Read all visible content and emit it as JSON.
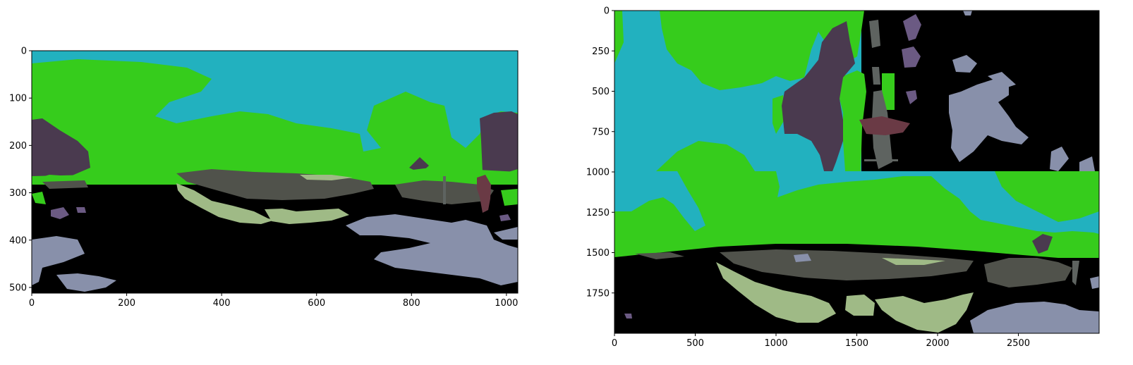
{
  "figure": {
    "panels": [
      {
        "name": "left-segmentation",
        "x_ticks": [
          "0",
          "200",
          "400",
          "600",
          "800",
          "1000"
        ],
        "x_tick_values": [
          0,
          200,
          400,
          600,
          800,
          1000
        ],
        "y_ticks": [
          "0",
          "100",
          "200",
          "300",
          "400",
          "500"
        ],
        "y_tick_values": [
          0,
          100,
          200,
          300,
          400,
          500
        ],
        "x_range": [
          0,
          1024
        ],
        "y_range": [
          0,
          512
        ]
      },
      {
        "name": "right-segmentation",
        "x_ticks": [
          "0",
          "500",
          "1000",
          "1500",
          "2000",
          "2500"
        ],
        "x_tick_values": [
          0,
          500,
          1000,
          1500,
          2000,
          2500
        ],
        "y_ticks": [
          "0",
          "250",
          "500",
          "750",
          "1000",
          "1250",
          "1500",
          "1750"
        ],
        "y_tick_values": [
          0,
          250,
          500,
          750,
          1000,
          1250,
          1500,
          1750
        ],
        "x_range": [
          0,
          3000
        ],
        "y_range": [
          0,
          2000
        ]
      }
    ],
    "colors": {
      "sky": "#22b1bf",
      "vegetation": "#36cc1c",
      "ground": "#000000",
      "road": "#50524b",
      "grass": "#9fba86",
      "water": "#8890aa",
      "building": "#4a3a4f",
      "purple": "#6b5a83",
      "red": "#6a3a45",
      "gray": "#5e6360"
    }
  }
}
